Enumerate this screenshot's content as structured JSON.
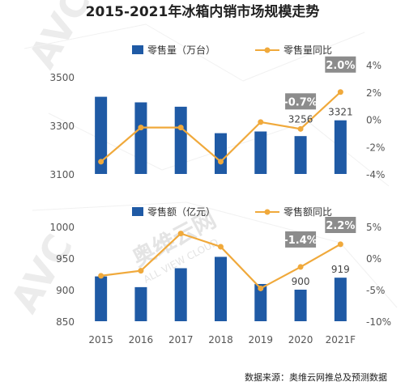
{
  "title": "2015-2021年冰箱内销市场规模走势",
  "source": "数据来源：奥维云网推总及预测数据",
  "watermark": {
    "logo": "AVC",
    "brand": "奥维云网",
    "brand_en": "ALL VIEW CLOUD"
  },
  "colors": {
    "bar": "#1F5AA5",
    "line": "#F0A93B",
    "callout": "#8C8C8C"
  },
  "chart_data": [
    {
      "type": "bar+line",
      "categories": [
        "2015",
        "2016",
        "2017",
        "2018",
        "2019",
        "2020",
        "2021F"
      ],
      "series": [
        {
          "name": "零售量（万台）",
          "type": "bar",
          "axis": "left",
          "values": [
            3418,
            3395,
            3377,
            3268,
            3275,
            3256,
            3321
          ]
        },
        {
          "name": "零售量同比",
          "type": "line",
          "axis": "right",
          "unit": "%",
          "values": [
            -3.1,
            -0.6,
            -0.6,
            -3.1,
            -0.2,
            -0.7,
            2.0
          ]
        }
      ],
      "left_axis": {
        "ticks": [
          3100,
          3300,
          3500
        ],
        "range": [
          3100,
          3550
        ]
      },
      "right_axis": {
        "ticks": [
          "4%",
          "2%",
          "0%",
          "-2%",
          "-4%"
        ],
        "range": [
          -4,
          4
        ]
      },
      "data_labels": [
        {
          "category": "2020",
          "text": "3256"
        },
        {
          "category": "2021F",
          "text": "3321"
        }
      ],
      "callouts": [
        {
          "category": "2020",
          "text": "-0.7%"
        },
        {
          "category": "2021F",
          "text": "2.0%"
        }
      ],
      "legend_position": "top"
    },
    {
      "type": "bar+line",
      "categories": [
        "2015",
        "2016",
        "2017",
        "2018",
        "2019",
        "2020",
        "2021F"
      ],
      "series": [
        {
          "name": "零售额（亿元）",
          "type": "bar",
          "axis": "left",
          "values": [
            921,
            904,
            934,
            952,
            909,
            900,
            919
          ]
        },
        {
          "name": "零售额同比",
          "type": "line",
          "axis": "right",
          "unit": "%",
          "values": [
            -2.8,
            -2.0,
            3.9,
            1.8,
            -4.8,
            -1.4,
            2.2
          ]
        }
      ],
      "left_axis": {
        "ticks": [
          850,
          900,
          950,
          1000
        ],
        "range": [
          850,
          1000
        ]
      },
      "right_axis": {
        "ticks": [
          "5%",
          "0%",
          "-5%",
          "-10%"
        ],
        "range": [
          -10,
          5
        ]
      },
      "data_labels": [
        {
          "category": "2020",
          "text": "900"
        },
        {
          "category": "2021F",
          "text": "919"
        }
      ],
      "callouts": [
        {
          "category": "2020",
          "text": "-1.4%"
        },
        {
          "category": "2021F",
          "text": "2.2%"
        }
      ],
      "legend_position": "top"
    }
  ]
}
